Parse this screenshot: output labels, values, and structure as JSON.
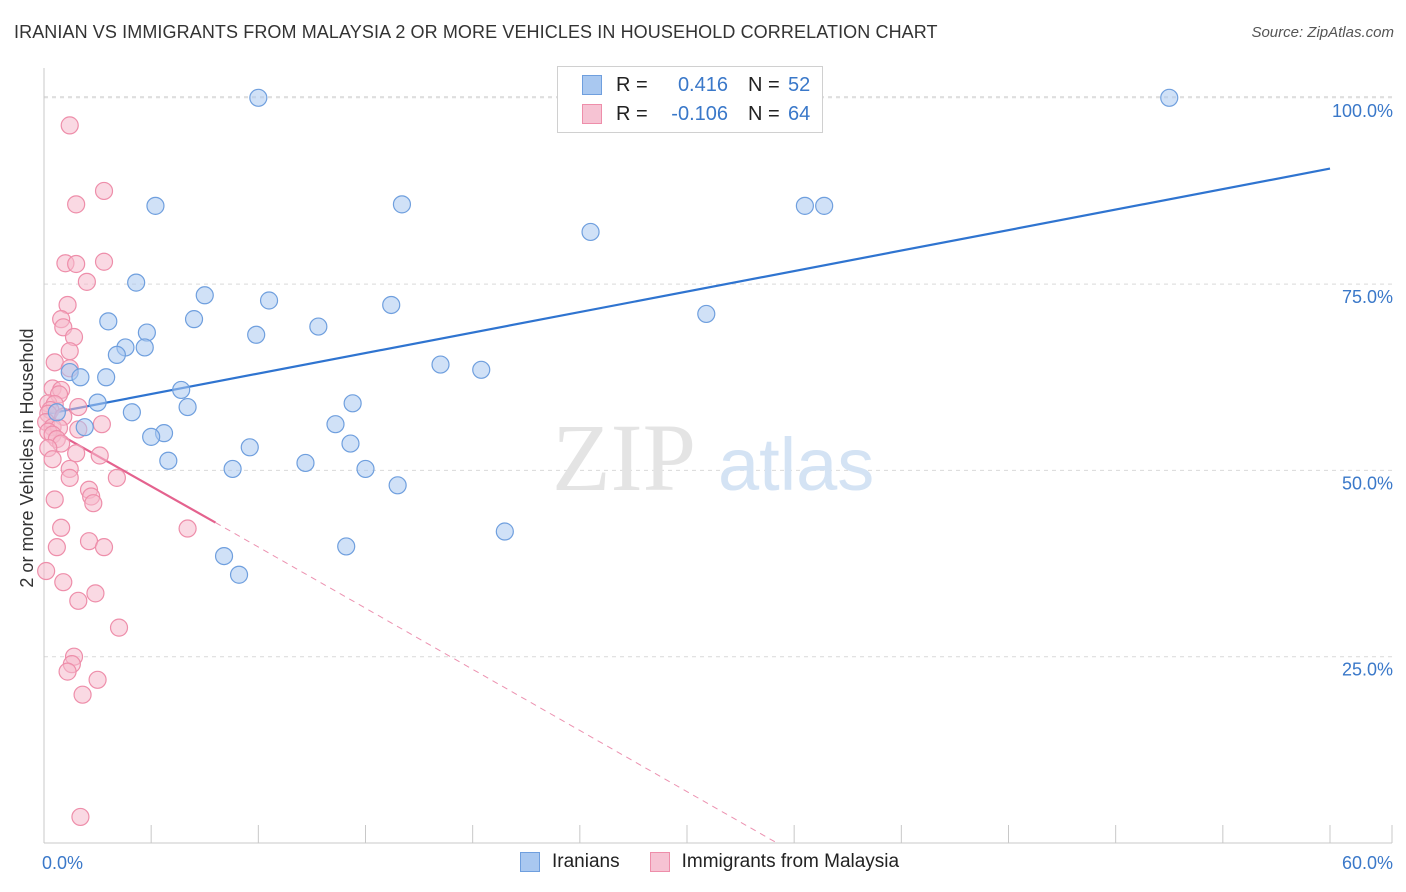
{
  "title": "IRANIAN VS IMMIGRANTS FROM MALAYSIA 2 OR MORE VEHICLES IN HOUSEHOLD CORRELATION CHART",
  "source": "Source: ZipAtlas.com",
  "watermark": {
    "zip": "ZIP",
    "atlas": "atlas"
  },
  "colors": {
    "blue_fill": "#a9c8f0",
    "blue_stroke": "#6f9fde",
    "blue_line": "#2f74d0",
    "pink_fill": "#f6b9cc",
    "pink_stroke": "#ee8eaa",
    "pink_line": "#e4628e",
    "axis_text": "#3a78c9",
    "grid": "#d9d9d9"
  },
  "legend": {
    "rows": [
      {
        "r_label": "R =",
        "r_value": "0.416",
        "n_label": "N =",
        "n_value": "52"
      },
      {
        "r_label": "R =",
        "r_value": "-0.106",
        "n_label": "N =",
        "n_value": "64"
      }
    ]
  },
  "bottom_legend": {
    "series1": "Iranians",
    "series2": "Immigrants from Malaysia"
  },
  "chart_data": {
    "type": "scatter",
    "xlabel": "",
    "ylabel": "2 or more Vehicles in Household",
    "xlim": [
      0,
      60
    ],
    "ylim": [
      0,
      104
    ],
    "x_tick_labels": [
      "0.0%",
      "60.0%"
    ],
    "y_ticks": [
      25,
      50,
      75,
      100
    ],
    "y_tick_labels": [
      "25.0%",
      "50.0%",
      "75.0%",
      "100.0%"
    ],
    "grid": true,
    "series": [
      {
        "name": "Iranians",
        "r": 0.416,
        "n": 52,
        "trend": {
          "x": [
            0,
            60
          ],
          "y": [
            57.5,
            90.5
          ]
        },
        "points": [
          [
            10,
            100
          ],
          [
            52.5,
            100
          ],
          [
            5.2,
            85.5
          ],
          [
            16.7,
            85.7
          ],
          [
            35.5,
            85.5
          ],
          [
            36.4,
            85.5
          ],
          [
            25.5,
            82
          ],
          [
            4.3,
            75.2
          ],
          [
            7.5,
            73.5
          ],
          [
            10.5,
            72.8
          ],
          [
            16.2,
            72.2
          ],
          [
            30.9,
            71
          ],
          [
            3.0,
            70
          ],
          [
            7.0,
            70.3
          ],
          [
            12.8,
            69.3
          ],
          [
            4.8,
            68.5
          ],
          [
            9.9,
            68.2
          ],
          [
            3.8,
            66.5
          ],
          [
            4.7,
            66.5
          ],
          [
            3.4,
            65.5
          ],
          [
            18.5,
            64.2
          ],
          [
            20.4,
            63.5
          ],
          [
            1.2,
            63.2
          ],
          [
            1.7,
            62.5
          ],
          [
            2.9,
            62.5
          ],
          [
            6.4,
            60.8
          ],
          [
            2.5,
            59.1
          ],
          [
            14.4,
            59
          ],
          [
            6.7,
            58.5
          ],
          [
            4.1,
            57.8
          ],
          [
            0.6,
            57.8
          ],
          [
            13.6,
            56.2
          ],
          [
            1.9,
            55.8
          ],
          [
            5.6,
            55
          ],
          [
            5.0,
            54.5
          ],
          [
            14.3,
            53.6
          ],
          [
            9.6,
            53.1
          ],
          [
            12.2,
            51
          ],
          [
            5.8,
            51.3
          ],
          [
            15.0,
            50.2
          ],
          [
            8.8,
            50.2
          ],
          [
            16.5,
            48
          ],
          [
            21.5,
            41.8
          ],
          [
            14.1,
            39.8
          ],
          [
            8.4,
            38.5
          ],
          [
            9.1,
            36
          ]
        ]
      },
      {
        "name": "Immigrants from Malaysia",
        "r": -0.106,
        "n": 64,
        "trend": {
          "x": [
            0,
            8
          ],
          "y": [
            56,
            43
          ],
          "dashed_to": {
            "x": 34.2,
            "y": 0
          }
        },
        "points": [
          [
            1.2,
            96.3
          ],
          [
            2.8,
            87.5
          ],
          [
            1.5,
            85.7
          ],
          [
            2.8,
            78
          ],
          [
            1.0,
            77.8
          ],
          [
            1.5,
            77.7
          ],
          [
            2.0,
            75.3
          ],
          [
            1.1,
            72.2
          ],
          [
            0.8,
            70.3
          ],
          [
            0.9,
            69.2
          ],
          [
            1.4,
            67.9
          ],
          [
            1.2,
            66
          ],
          [
            0.5,
            64.5
          ],
          [
            1.2,
            63.7
          ],
          [
            0.4,
            61
          ],
          [
            0.8,
            60.8
          ],
          [
            0.7,
            60.2
          ],
          [
            0.2,
            59
          ],
          [
            0.5,
            58.9
          ],
          [
            0.3,
            58.1
          ],
          [
            0.2,
            57.6
          ],
          [
            1.6,
            58.5
          ],
          [
            0.9,
            57.2
          ],
          [
            0.1,
            56.5
          ],
          [
            0.4,
            55.8
          ],
          [
            0.7,
            55.7
          ],
          [
            1.6,
            55.5
          ],
          [
            0.2,
            55.2
          ],
          [
            2.7,
            56.2
          ],
          [
            0.4,
            54.8
          ],
          [
            0.6,
            54.2
          ],
          [
            0.8,
            53.6
          ],
          [
            0.2,
            53
          ],
          [
            1.5,
            52.3
          ],
          [
            2.6,
            52
          ],
          [
            0.4,
            51.5
          ],
          [
            1.2,
            50.2
          ],
          [
            1.2,
            49
          ],
          [
            3.4,
            49
          ],
          [
            2.1,
            47.4
          ],
          [
            2.2,
            46.5
          ],
          [
            0.5,
            46.1
          ],
          [
            2.3,
            45.6
          ],
          [
            6.7,
            42.2
          ],
          [
            0.8,
            42.3
          ],
          [
            2.1,
            40.5
          ],
          [
            2.8,
            39.7
          ],
          [
            0.6,
            39.7
          ],
          [
            0.9,
            35
          ],
          [
            0.1,
            36.5
          ],
          [
            2.4,
            33.5
          ],
          [
            1.6,
            32.5
          ],
          [
            3.5,
            28.9
          ],
          [
            1.4,
            25
          ],
          [
            1.3,
            24
          ],
          [
            1.1,
            23
          ],
          [
            2.5,
            21.9
          ],
          [
            1.8,
            19.9
          ],
          [
            1.7,
            3.5
          ]
        ]
      }
    ]
  }
}
